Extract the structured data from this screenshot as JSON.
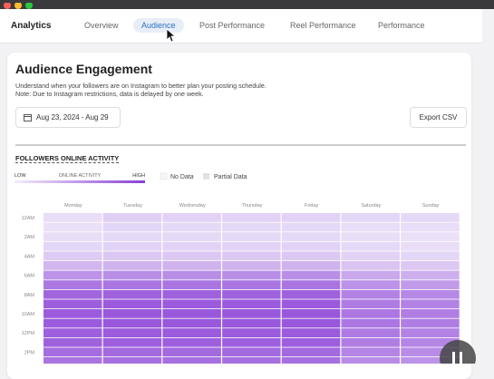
{
  "app": {
    "title": "Analytics"
  },
  "tabs": [
    "Overview",
    "Audience",
    "Post Performance",
    "Reel Performance",
    "Performance"
  ],
  "active_tab": 1,
  "card": {
    "title": "Audience Engagement",
    "description": [
      "Understand when your followers are on Instagram to better plan your posting schedule.",
      "Note: Due to Instagram restrictions, data is delayed by one week."
    ],
    "date_range": "Aug 23, 2024 - Aug 29",
    "export": "Export CSV",
    "section_title": "FOLLOWERS ONLINE ACTIVITY"
  },
  "heatmap": {
    "type": "heatmap",
    "legend": {
      "low": "LOW",
      "label": "ONLINE ACTIVITY",
      "high": "HIGH",
      "no_data": "No Data",
      "partial": "Partial Data"
    },
    "colors": {
      "low": "#f3eefb",
      "high": "#8a3fd6"
    },
    "vlim": [
      0,
      100
    ],
    "columns": [
      "Monday",
      "Tuesday",
      "Wednesday",
      "Thursday",
      "Friday",
      "Saturday",
      "Sunday"
    ],
    "rows": [
      "12AM",
      null,
      "2AM",
      null,
      "4AM",
      null,
      "6AM",
      null,
      "8AM",
      null,
      "10AM",
      null,
      "12PM",
      null,
      "2PM",
      null
    ],
    "values": [
      [
        10,
        18,
        16,
        16,
        16,
        14,
        12
      ],
      [
        8,
        14,
        12,
        12,
        12,
        10,
        10
      ],
      [
        10,
        12,
        12,
        12,
        12,
        10,
        8
      ],
      [
        14,
        16,
        16,
        16,
        16,
        12,
        10
      ],
      [
        20,
        22,
        22,
        22,
        22,
        16,
        14
      ],
      [
        32,
        34,
        34,
        34,
        34,
        24,
        22
      ],
      [
        52,
        55,
        55,
        55,
        55,
        40,
        36
      ],
      [
        68,
        70,
        70,
        70,
        70,
        52,
        48
      ],
      [
        78,
        80,
        80,
        80,
        80,
        62,
        58
      ],
      [
        82,
        84,
        84,
        84,
        84,
        66,
        62
      ],
      [
        84,
        86,
        86,
        86,
        86,
        68,
        64
      ],
      [
        84,
        86,
        86,
        86,
        86,
        68,
        64
      ],
      [
        82,
        84,
        84,
        84,
        84,
        66,
        62
      ],
      [
        80,
        82,
        82,
        82,
        82,
        64,
        60
      ],
      [
        74,
        76,
        76,
        76,
        76,
        60,
        56
      ],
      [
        70,
        72,
        72,
        72,
        72,
        56,
        52
      ]
    ]
  }
}
